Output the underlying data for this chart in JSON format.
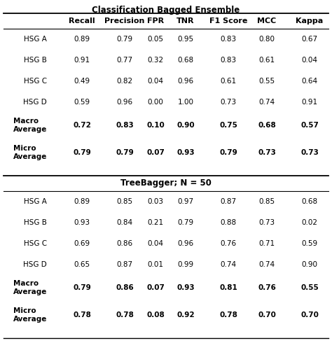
{
  "title1": "Classification Bagged Ensemble",
  "title2": "TreeBagger; N = 50",
  "columns": [
    "",
    "Recall",
    "Precision",
    "FPR",
    "TNR",
    "F1 Score",
    "MCC",
    "Kappa"
  ],
  "section1_rows": [
    [
      "HSG A",
      "0.89",
      "0.79",
      "0.05",
      "0.95",
      "0.83",
      "0.80",
      "0.67"
    ],
    [
      "HSG B",
      "0.91",
      "0.77",
      "0.32",
      "0.68",
      "0.83",
      "0.61",
      "0.04"
    ],
    [
      "HSG C",
      "0.49",
      "0.82",
      "0.04",
      "0.96",
      "0.61",
      "0.55",
      "0.64"
    ],
    [
      "HSG D",
      "0.59",
      "0.96",
      "0.00",
      "1.00",
      "0.73",
      "0.74",
      "0.91"
    ]
  ],
  "section1_bold_rows": [
    [
      "Macro\nAverage",
      "0.72",
      "0.83",
      "0.10",
      "0.90",
      "0.75",
      "0.68",
      "0.57"
    ],
    [
      "Micro\nAverage",
      "0.79",
      "0.79",
      "0.07",
      "0.93",
      "0.79",
      "0.73",
      "0.73"
    ]
  ],
  "section2_rows": [
    [
      "HSG A",
      "0.89",
      "0.85",
      "0.03",
      "0.97",
      "0.87",
      "0.85",
      "0.68"
    ],
    [
      "HSG B",
      "0.93",
      "0.84",
      "0.21",
      "0.79",
      "0.88",
      "0.73",
      "0.02"
    ],
    [
      "HSG C",
      "0.69",
      "0.86",
      "0.04",
      "0.96",
      "0.76",
      "0.71",
      "0.59"
    ],
    [
      "HSG D",
      "0.65",
      "0.87",
      "0.01",
      "0.99",
      "0.74",
      "0.74",
      "0.90"
    ]
  ],
  "section2_bold_rows": [
    [
      "Macro\nAverage",
      "0.79",
      "0.86",
      "0.07",
      "0.93",
      "0.81",
      "0.76",
      "0.55"
    ],
    [
      "Micro\nAverage",
      "0.78",
      "0.78",
      "0.08",
      "0.92",
      "0.78",
      "0.70",
      "0.70"
    ]
  ],
  "background_color": "#ffffff",
  "text_color": "#000000",
  "font_size": 7.5,
  "title_font_size": 8.5,
  "header_font_size": 8.0
}
